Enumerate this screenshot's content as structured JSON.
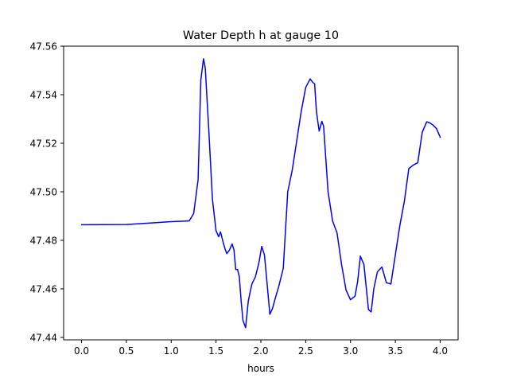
{
  "chart_data": {
    "type": "line",
    "title": "Water Depth h at gauge 10",
    "xlabel": "hours",
    "ylabel": "",
    "xlim": [
      -0.2,
      4.2
    ],
    "ylim": [
      47.439,
      47.56
    ],
    "x_ticks": [
      0.0,
      0.5,
      1.0,
      1.5,
      2.0,
      2.5,
      3.0,
      3.5,
      4.0
    ],
    "x_tick_labels": [
      "0.0",
      "0.5",
      "1.0",
      "1.5",
      "2.0",
      "2.5",
      "3.0",
      "3.5",
      "4.0"
    ],
    "y_ticks": [
      47.44,
      47.46,
      47.48,
      47.5,
      47.52,
      47.54,
      47.56
    ],
    "y_tick_labels": [
      "47.44",
      "47.46",
      "47.48",
      "47.50",
      "47.52",
      "47.54",
      "47.56"
    ],
    "grid": false,
    "legend": "none",
    "series": [
      {
        "color": "#0000ff",
        "x": [
          0.0,
          0.5,
          0.8,
          1.0,
          1.2,
          1.25,
          1.3,
          1.33,
          1.36,
          1.38,
          1.42,
          1.46,
          1.5,
          1.53,
          1.55,
          1.58,
          1.6,
          1.62,
          1.65,
          1.68,
          1.7,
          1.72,
          1.74,
          1.76,
          1.78,
          1.8,
          1.83,
          1.86,
          1.9,
          1.94,
          1.98,
          2.01,
          2.04,
          2.07,
          2.1,
          2.13,
          2.16,
          2.2,
          2.25,
          2.3,
          2.35,
          2.4,
          2.45,
          2.5,
          2.55,
          2.58,
          2.6,
          2.62,
          2.65,
          2.68,
          2.7,
          2.75,
          2.8,
          2.85,
          2.9,
          2.95,
          3.0,
          3.05,
          3.08,
          3.11,
          3.15,
          3.2,
          3.23,
          3.26,
          3.3,
          3.35,
          3.4,
          3.45,
          3.5,
          3.55,
          3.6,
          3.65,
          3.7,
          3.75,
          3.8,
          3.85,
          3.88,
          3.92,
          3.96,
          4.0
        ],
        "y": [
          47.4864,
          47.4865,
          47.4872,
          47.4877,
          47.488,
          47.491,
          47.505,
          47.546,
          47.5548,
          47.551,
          47.525,
          47.497,
          47.484,
          47.4815,
          47.4835,
          47.479,
          47.4765,
          47.4745,
          47.476,
          47.4785,
          47.476,
          47.468,
          47.468,
          47.465,
          47.455,
          47.447,
          47.444,
          47.455,
          47.462,
          47.465,
          47.471,
          47.4775,
          47.474,
          47.462,
          47.4495,
          47.452,
          47.456,
          47.461,
          47.4685,
          47.5,
          47.509,
          47.521,
          47.533,
          47.543,
          47.5465,
          47.545,
          47.5445,
          47.533,
          47.525,
          47.529,
          47.527,
          47.5,
          47.488,
          47.483,
          47.47,
          47.4595,
          47.4555,
          47.457,
          47.463,
          47.4735,
          47.47,
          47.4515,
          47.4505,
          47.46,
          47.467,
          47.469,
          47.4625,
          47.462,
          47.474,
          47.486,
          47.496,
          47.5095,
          47.511,
          47.512,
          47.5245,
          47.5288,
          47.5285,
          47.5275,
          47.526,
          47.5225
        ]
      }
    ]
  }
}
